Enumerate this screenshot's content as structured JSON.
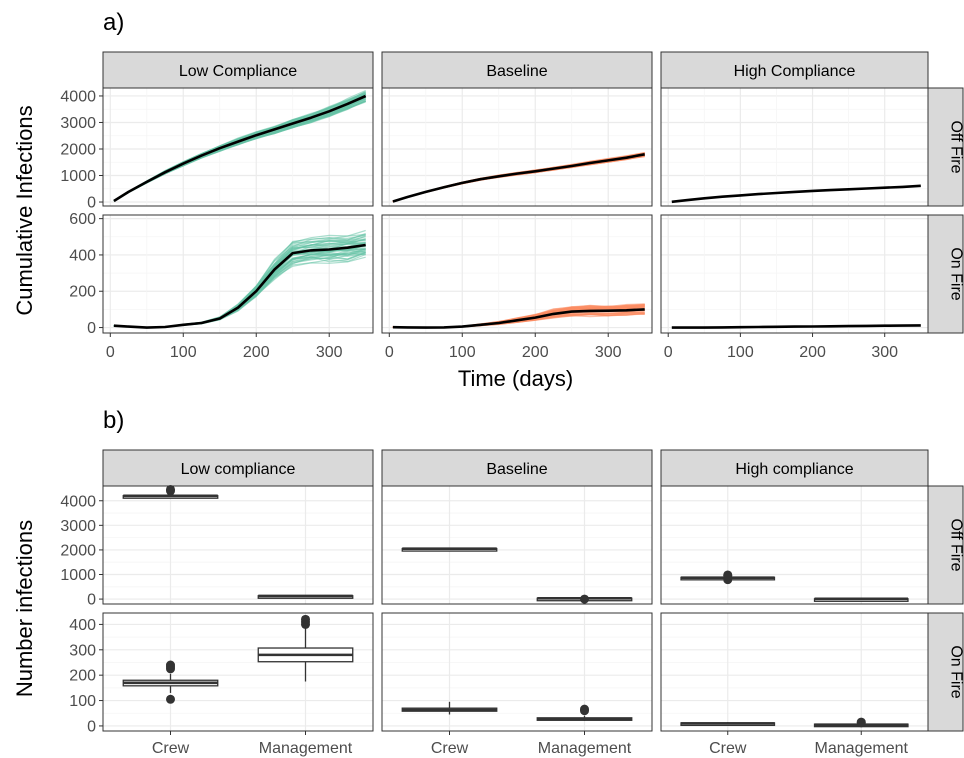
{
  "colors": {
    "panel_border": "#333333",
    "strip_fill": "#d9d9d9",
    "grid_major": "#ebebeb",
    "grid_minor": "#f5f5f5",
    "low_compliance": "#66c2a5",
    "baseline": "#fc8d62",
    "mean_line": "#000000",
    "box": "#333333",
    "text": "#000000",
    "tick_text": "#4d4d4d"
  },
  "chart_data": [
    {
      "label": "a)",
      "type": "line",
      "xlabel": "Time (days)",
      "ylabel": "Cumulative Infections",
      "columns": [
        "Low Compliance",
        "Baseline",
        "High Compliance"
      ],
      "rows": [
        "Off Fire",
        "On Fire"
      ],
      "xlim": [
        -10,
        360
      ],
      "x_ticks": [
        0,
        100,
        200,
        300
      ],
      "row_ylim": [
        [
          -150,
          4300
        ],
        [
          -30,
          620
        ]
      ],
      "row_y_ticks": [
        [
          0,
          1000,
          2000,
          3000,
          4000
        ],
        [
          0,
          200,
          400,
          600
        ]
      ],
      "x": [
        5,
        25,
        50,
        75,
        100,
        125,
        150,
        175,
        200,
        225,
        250,
        275,
        300,
        325,
        350
      ],
      "panels": [
        {
          "row": "Off Fire",
          "column": "Low Compliance",
          "color": "#66c2a5",
          "spread": 0.05,
          "mean": [
            40,
            380,
            760,
            1120,
            1450,
            1750,
            2030,
            2280,
            2520,
            2740,
            2960,
            3180,
            3420,
            3700,
            4000
          ]
        },
        {
          "row": "Off Fire",
          "column": "Baseline",
          "color": "#fc8d62",
          "spread": 0.04,
          "mean": [
            20,
            190,
            380,
            560,
            720,
            860,
            970,
            1070,
            1160,
            1260,
            1360,
            1470,
            1570,
            1670,
            1800
          ]
        },
        {
          "row": "Off Fire",
          "column": "High Compliance",
          "color": "#000000",
          "spread": 0,
          "mean": [
            10,
            70,
            140,
            200,
            250,
            300,
            340,
            380,
            420,
            450,
            480,
            510,
            540,
            570,
            610
          ]
        },
        {
          "row": "On Fire",
          "column": "Low Compliance",
          "color": "#66c2a5",
          "spread": 0.15,
          "mean": [
            10,
            5,
            0,
            3,
            15,
            25,
            50,
            110,
            200,
            320,
            410,
            425,
            430,
            440,
            455
          ]
        },
        {
          "row": "On Fire",
          "column": "Baseline",
          "color": "#fc8d62",
          "spread": 0.3,
          "mean": [
            2,
            1,
            0,
            1,
            5,
            15,
            25,
            40,
            55,
            75,
            88,
            92,
            93,
            95,
            100
          ]
        },
        {
          "row": "On Fire",
          "column": "High Compliance",
          "color": "#000000",
          "spread": 0,
          "mean": [
            0,
            0,
            0,
            1,
            2,
            3,
            4,
            5,
            6,
            7,
            8,
            9,
            10,
            11,
            12
          ]
        }
      ]
    },
    {
      "label": "b)",
      "type": "box",
      "xlabel": "",
      "ylabel": "Number infections",
      "columns": [
        "Low compliance",
        "Baseline",
        "High compliance"
      ],
      "rows": [
        "Off Fire",
        "On Fire"
      ],
      "categories": [
        "Crew",
        "Management"
      ],
      "row_ylim": [
        [
          -200,
          4600
        ],
        [
          -20,
          445
        ]
      ],
      "row_y_ticks": [
        [
          0,
          1000,
          2000,
          3000,
          4000
        ],
        [
          0,
          100,
          200,
          300,
          400
        ]
      ],
      "boxes": [
        {
          "row": "Off Fire",
          "column": "Low compliance",
          "category": "Crew",
          "min": 4180,
          "q1": 4195,
          "median": 4200,
          "q3": 4205,
          "max": 4230,
          "outliers": [
            4400,
            4460
          ]
        },
        {
          "row": "Off Fire",
          "column": "Low compliance",
          "category": "Management",
          "min": 115,
          "q1": 125,
          "median": 130,
          "q3": 135,
          "max": 145,
          "outliers": []
        },
        {
          "row": "Off Fire",
          "column": "Baseline",
          "category": "Crew",
          "min": 2035,
          "q1": 2045,
          "median": 2050,
          "q3": 2055,
          "max": 2065,
          "outliers": []
        },
        {
          "row": "Off Fire",
          "column": "Baseline",
          "category": "Management",
          "min": 15,
          "q1": 25,
          "median": 30,
          "q3": 35,
          "max": 45,
          "outliers": [
            0
          ]
        },
        {
          "row": "Off Fire",
          "column": "High compliance",
          "category": "Crew",
          "min": 830,
          "q1": 855,
          "median": 870,
          "q3": 885,
          "max": 910,
          "outliers": [
            790,
            950,
            980
          ]
        },
        {
          "row": "Off Fire",
          "column": "High compliance",
          "category": "Management",
          "min": 5,
          "q1": 8,
          "median": 10,
          "q3": 12,
          "max": 15,
          "outliers": []
        },
        {
          "row": "On Fire",
          "column": "Low compliance",
          "category": "Crew",
          "min": 130,
          "q1": 158,
          "median": 170,
          "q3": 180,
          "max": 205,
          "outliers": [
            105,
            225,
            232,
            240
          ]
        },
        {
          "row": "On Fire",
          "column": "Low compliance",
          "category": "Management",
          "min": 175,
          "q1": 253,
          "median": 280,
          "q3": 307,
          "max": 385,
          "outliers": [
            400,
            410,
            420
          ]
        },
        {
          "row": "On Fire",
          "column": "Baseline",
          "category": "Crew",
          "min": 45,
          "q1": 58,
          "median": 63,
          "q3": 70,
          "max": 95,
          "outliers": []
        },
        {
          "row": "On Fire",
          "column": "Baseline",
          "category": "Management",
          "min": 20,
          "q1": 25,
          "median": 28,
          "q3": 32,
          "max": 40,
          "outliers": [
            60,
            66
          ]
        },
        {
          "row": "On Fire",
          "column": "High compliance",
          "category": "Crew",
          "min": 5,
          "q1": 8,
          "median": 10,
          "q3": 12,
          "max": 15,
          "outliers": []
        },
        {
          "row": "On Fire",
          "column": "High compliance",
          "category": "Management",
          "min": 0,
          "q1": 3,
          "median": 5,
          "q3": 7,
          "max": 10,
          "outliers": [
            12,
            15
          ]
        }
      ]
    }
  ]
}
